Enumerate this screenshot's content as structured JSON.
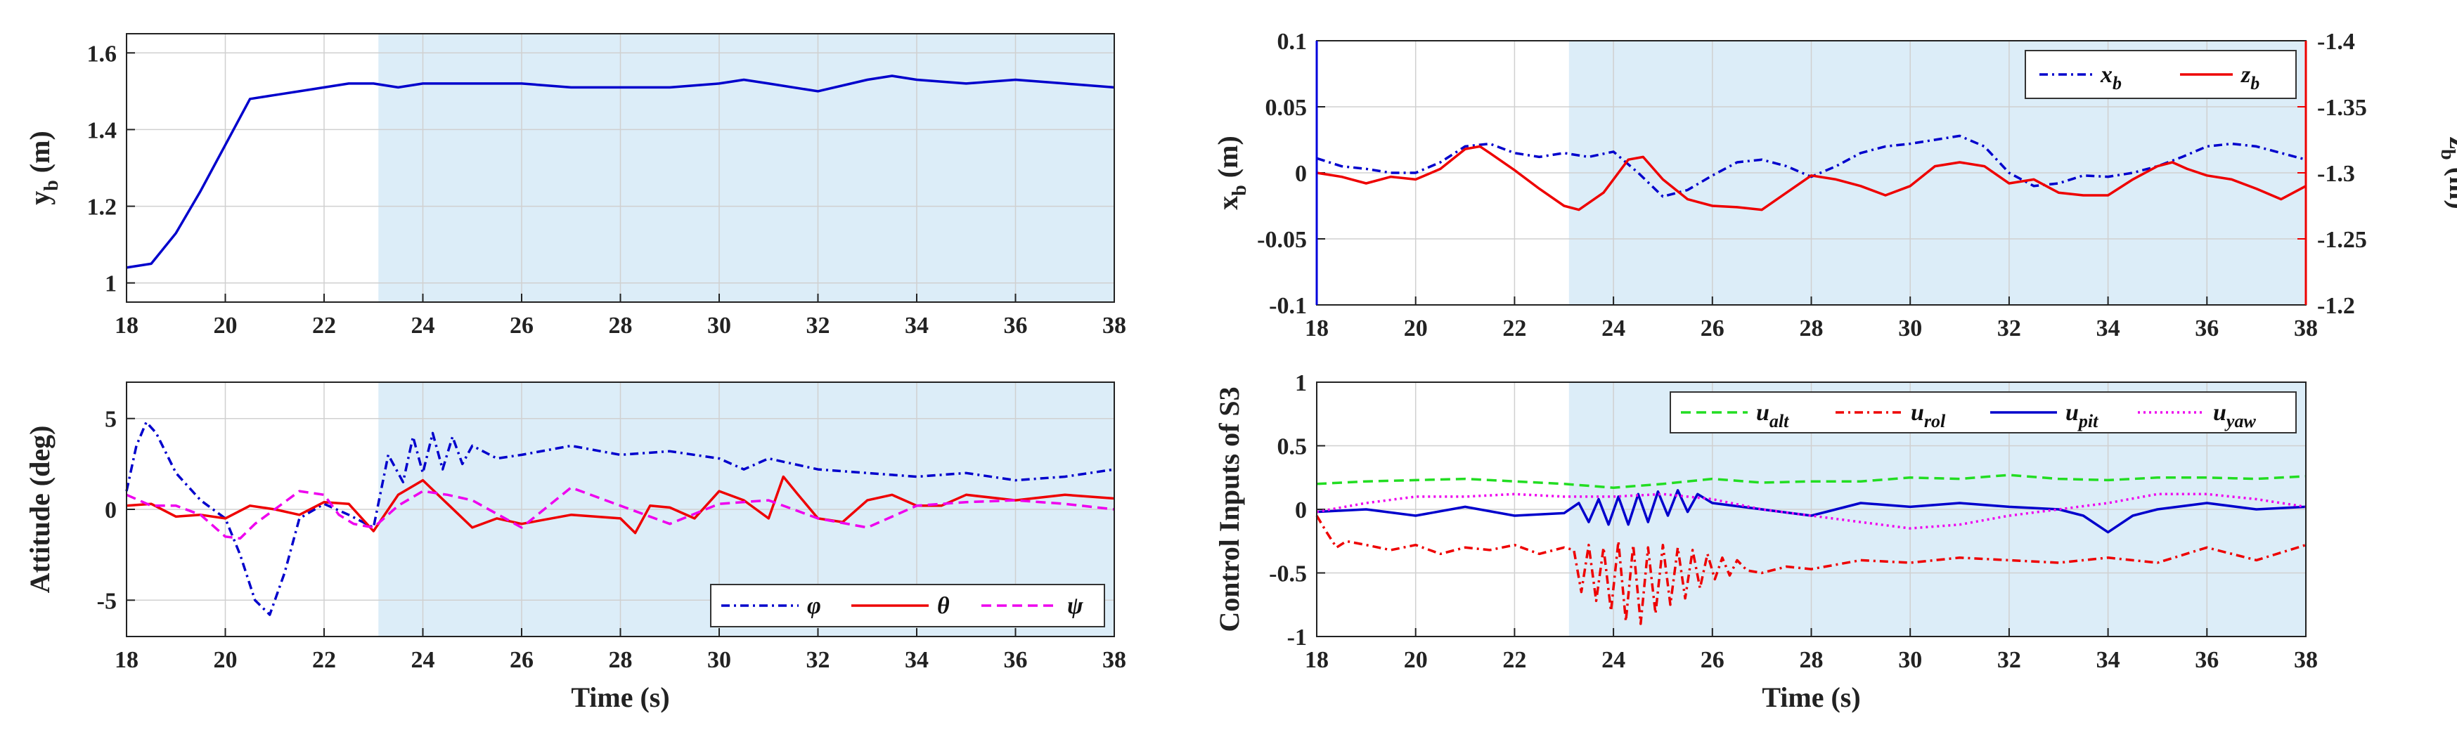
{
  "shade_color": "#dcedf8",
  "chart_data": [
    {
      "id": "p1",
      "type": "line",
      "xlabel": "",
      "ylabel": "y",
      "ylabel_sub": "b",
      "ylabel_unit": " (m)",
      "xlim": [
        18,
        38
      ],
      "ylim": [
        0.95,
        1.65
      ],
      "xticks": [
        "18",
        "20",
        "22",
        "24",
        "26",
        "28",
        "30",
        "32",
        "34",
        "36",
        "38"
      ],
      "yticks": [
        "1",
        "1.2",
        "1.4",
        "1.6"
      ],
      "shade": [
        23.1,
        38
      ],
      "grid": true,
      "legend": null,
      "series": [
        {
          "name": "y_b",
          "color": "#0000cc",
          "dash": "",
          "axis": "left",
          "x": [
            18,
            18.5,
            19,
            19.5,
            20,
            20.5,
            21,
            21.5,
            22,
            22.5,
            23,
            23.5,
            24,
            25,
            26,
            27,
            28,
            29,
            30,
            30.5,
            31,
            32,
            33,
            33.5,
            34,
            35,
            36,
            37,
            38
          ],
          "y": [
            1.04,
            1.05,
            1.13,
            1.24,
            1.36,
            1.48,
            1.49,
            1.5,
            1.51,
            1.52,
            1.52,
            1.51,
            1.52,
            1.52,
            1.52,
            1.51,
            1.51,
            1.51,
            1.52,
            1.53,
            1.52,
            1.5,
            1.53,
            1.54,
            1.53,
            1.52,
            1.53,
            1.52,
            1.51
          ]
        }
      ]
    },
    {
      "id": "p2",
      "type": "line",
      "xlabel": "",
      "ylabel": "x",
      "ylabel_sub": "b",
      "ylabel_unit": " (m)",
      "y2label": "z",
      "y2label_sub": "b",
      "y2label_unit": " (m)",
      "xlim": [
        18,
        38
      ],
      "ylim": [
        -0.1,
        0.1
      ],
      "y2lim": [
        -1.2,
        -1.4
      ],
      "xticks": [
        "18",
        "20",
        "22",
        "24",
        "26",
        "28",
        "30",
        "32",
        "34",
        "36",
        "38"
      ],
      "yticks": [
        "-0.1",
        "-0.05",
        "0",
        "0.05",
        "0.1"
      ],
      "y2ticks": [
        "-1.2",
        "-1.25",
        "-1.3",
        "-1.35",
        "-1.4"
      ],
      "shade": [
        23.1,
        38
      ],
      "grid": true,
      "legend": {
        "position": "top-right",
        "entries": [
          {
            "label": "x",
            "sub": "b"
          },
          {
            "label": "z",
            "sub": "b"
          }
        ]
      },
      "series": [
        {
          "name": "x_b",
          "color": "#0000cc",
          "dash": "12,6,3,6",
          "axis": "left",
          "x": [
            18,
            18.5,
            19,
            19.5,
            20,
            20.5,
            21,
            21.5,
            22,
            22.5,
            23,
            23.5,
            24,
            24.5,
            25,
            25.5,
            26,
            26.5,
            27,
            27.5,
            28,
            28.5,
            29,
            29.5,
            30,
            30.5,
            31,
            31.5,
            32,
            32.5,
            33,
            33.5,
            34,
            34.5,
            35,
            35.5,
            36,
            36.5,
            37,
            37.5,
            38
          ],
          "y": [
            0.011,
            0.005,
            0.003,
            0.0,
            0.0,
            0.008,
            0.02,
            0.022,
            0.015,
            0.012,
            0.015,
            0.012,
            0.016,
            0.0,
            -0.018,
            -0.013,
            -0.002,
            0.008,
            0.01,
            0.005,
            -0.003,
            0.005,
            0.015,
            0.02,
            0.022,
            0.025,
            0.028,
            0.02,
            0.0,
            -0.01,
            -0.008,
            -0.002,
            -0.003,
            0.0,
            0.005,
            0.012,
            0.02,
            0.022,
            0.02,
            0.015,
            0.01
          ]
        },
        {
          "name": "z_b",
          "color": "#ee0000",
          "dash": "",
          "axis": "right",
          "x": [
            18,
            18.5,
            19,
            19.5,
            20,
            20.5,
            21,
            21.3,
            21.5,
            22,
            22.5,
            23,
            23.3,
            23.8,
            24.3,
            24.6,
            25,
            25.5,
            26,
            26.5,
            27,
            27.5,
            28,
            28.5,
            29,
            29.5,
            30,
            30.5,
            31,
            31.5,
            32,
            32.5,
            33,
            33.5,
            34,
            34.5,
            35,
            35.3,
            35.6,
            36,
            36.5,
            37,
            37.5,
            38
          ],
          "y": [
            -1.3,
            -1.297,
            -1.292,
            -1.297,
            -1.295,
            -1.303,
            -1.318,
            -1.32,
            -1.315,
            -1.302,
            -1.288,
            -1.275,
            -1.272,
            -1.285,
            -1.31,
            -1.312,
            -1.295,
            -1.28,
            -1.275,
            -1.274,
            -1.272,
            -1.285,
            -1.298,
            -1.295,
            -1.29,
            -1.283,
            -1.29,
            -1.305,
            -1.308,
            -1.305,
            -1.292,
            -1.295,
            -1.285,
            -1.283,
            -1.283,
            -1.295,
            -1.305,
            -1.308,
            -1.303,
            -1.298,
            -1.295,
            -1.288,
            -1.28,
            -1.29
          ]
        }
      ]
    },
    {
      "id": "p3",
      "type": "line",
      "xlabel": "Time (s)",
      "ylabel": "Attitude (deg)",
      "xlim": [
        18,
        38
      ],
      "ylim": [
        -7,
        7
      ],
      "xticks": [
        "18",
        "20",
        "22",
        "24",
        "26",
        "28",
        "30",
        "32",
        "34",
        "36",
        "38"
      ],
      "yticks": [
        "-5",
        "0",
        "5"
      ],
      "shade": [
        23.1,
        38
      ],
      "grid": true,
      "legend": {
        "position": "bottom-right",
        "entries": [
          {
            "label": "φ"
          },
          {
            "label": "θ"
          },
          {
            "label": "ψ"
          }
        ]
      },
      "series": [
        {
          "name": "phi",
          "color": "#0000cc",
          "dash": "12,6,3,6",
          "axis": "left",
          "x": [
            18,
            18.2,
            18.4,
            18.6,
            19,
            19.5,
            20,
            20.3,
            20.6,
            20.9,
            21.2,
            21.5,
            22,
            22.5,
            23,
            23.3,
            23.6,
            23.8,
            24,
            24.2,
            24.4,
            24.6,
            24.8,
            25,
            25.5,
            26,
            27,
            28,
            29,
            30,
            30.5,
            31,
            32,
            33,
            34,
            35,
            36,
            37,
            38
          ],
          "y": [
            1.0,
            3.5,
            4.8,
            4.2,
            2.0,
            0.5,
            -0.5,
            -2.5,
            -5.0,
            -5.8,
            -3.5,
            -0.5,
            0.3,
            -0.3,
            -1.0,
            3.0,
            1.5,
            4.0,
            2.0,
            4.2,
            2.2,
            4.0,
            2.5,
            3.5,
            2.8,
            3.0,
            3.5,
            3.0,
            3.2,
            2.8,
            2.2,
            2.8,
            2.2,
            2.0,
            1.8,
            2.0,
            1.6,
            1.8,
            2.2
          ]
        },
        {
          "name": "theta",
          "color": "#ee0000",
          "dash": "",
          "axis": "left",
          "x": [
            18,
            18.5,
            19,
            19.5,
            20,
            20.5,
            21,
            21.5,
            22,
            22.5,
            23,
            23.5,
            24,
            24.5,
            25,
            25.5,
            26,
            27,
            28,
            28.3,
            28.6,
            29,
            29.5,
            30,
            30.5,
            31,
            31.3,
            31.6,
            32,
            32.5,
            33,
            33.5,
            34,
            34.5,
            35,
            36,
            37,
            38
          ],
          "y": [
            0.2,
            0.3,
            -0.4,
            -0.3,
            -0.5,
            0.2,
            0.0,
            -0.3,
            0.4,
            0.3,
            -1.2,
            0.8,
            1.6,
            0.3,
            -1.0,
            -0.5,
            -0.8,
            -0.3,
            -0.5,
            -1.3,
            0.2,
            0.1,
            -0.5,
            1.0,
            0.5,
            -0.5,
            1.8,
            0.8,
            -0.5,
            -0.7,
            0.5,
            0.8,
            0.2,
            0.2,
            0.8,
            0.5,
            0.8,
            0.6
          ]
        },
        {
          "name": "psi",
          "color": "#ee00ee",
          "dash": "14,8",
          "axis": "left",
          "x": [
            18,
            18.5,
            19,
            19.5,
            20,
            20.3,
            20.6,
            21,
            21.5,
            22,
            22.3,
            22.6,
            23,
            23.5,
            24,
            24.5,
            25,
            26,
            27,
            28,
            29,
            30,
            31,
            32,
            33,
            34,
            35,
            36,
            37,
            38
          ],
          "y": [
            0.8,
            0.2,
            0.2,
            -0.3,
            -1.5,
            -1.6,
            -0.8,
            0.0,
            1.0,
            0.8,
            -0.3,
            -0.8,
            -1.0,
            0.2,
            1.0,
            0.8,
            0.5,
            -1.0,
            1.2,
            0.2,
            -0.8,
            0.3,
            0.5,
            -0.5,
            -1.0,
            0.2,
            0.4,
            0.5,
            0.3,
            0.0
          ]
        }
      ]
    },
    {
      "id": "p4",
      "type": "line",
      "xlabel": "Time (s)",
      "ylabel": "Control Inputs of S3",
      "xlim": [
        18,
        38
      ],
      "ylim": [
        -1,
        1
      ],
      "xticks": [
        "18",
        "20",
        "22",
        "24",
        "26",
        "28",
        "30",
        "32",
        "34",
        "36",
        "38"
      ],
      "yticks": [
        "-1",
        "-0.5",
        "0",
        "0.5",
        "1"
      ],
      "shade": [
        23.1,
        38
      ],
      "grid": true,
      "legend": {
        "position": "top-right",
        "entries": [
          {
            "label": "u",
            "sub": "alt"
          },
          {
            "label": "u",
            "sub": "rol"
          },
          {
            "label": "u",
            "sub": "pit"
          },
          {
            "label": "u",
            "sub": "yaw"
          }
        ]
      },
      "series": [
        {
          "name": "u_alt",
          "color": "#22dd22",
          "dash": "14,8",
          "axis": "left",
          "x": [
            18,
            19,
            20,
            21,
            22,
            23,
            24,
            25,
            26,
            27,
            28,
            29,
            30,
            31,
            32,
            33,
            34,
            35,
            36,
            37,
            38
          ],
          "y": [
            0.2,
            0.22,
            0.23,
            0.24,
            0.22,
            0.2,
            0.17,
            0.2,
            0.24,
            0.21,
            0.22,
            0.22,
            0.25,
            0.24,
            0.27,
            0.24,
            0.23,
            0.25,
            0.25,
            0.24,
            0.26
          ]
        },
        {
          "name": "u_rol",
          "color": "#ee0000",
          "dash": "12,6,3,6",
          "axis": "left",
          "x": [
            18,
            18.2,
            18.4,
            18.6,
            19,
            19.5,
            20,
            20.5,
            21,
            21.5,
            22,
            22.5,
            23,
            23.2,
            23.35,
            23.5,
            23.65,
            23.8,
            23.95,
            24.1,
            24.25,
            24.4,
            24.55,
            24.7,
            24.85,
            25,
            25.15,
            25.3,
            25.45,
            25.6,
            25.75,
            25.9,
            26.05,
            26.2,
            26.35,
            26.5,
            26.7,
            27,
            27.5,
            28,
            29,
            30,
            31,
            32,
            33,
            34,
            35,
            36,
            37,
            38
          ],
          "y": [
            -0.05,
            -0.18,
            -0.3,
            -0.25,
            -0.28,
            -0.32,
            -0.28,
            -0.35,
            -0.3,
            -0.32,
            -0.28,
            -0.35,
            -0.3,
            -0.32,
            -0.65,
            -0.28,
            -0.72,
            -0.3,
            -0.8,
            -0.25,
            -0.88,
            -0.28,
            -0.9,
            -0.3,
            -0.82,
            -0.28,
            -0.75,
            -0.3,
            -0.7,
            -0.32,
            -0.62,
            -0.35,
            -0.55,
            -0.38,
            -0.52,
            -0.4,
            -0.48,
            -0.5,
            -0.45,
            -0.47,
            -0.4,
            -0.42,
            -0.38,
            -0.4,
            -0.42,
            -0.38,
            -0.42,
            -0.3,
            -0.4,
            -0.28
          ]
        },
        {
          "name": "u_pit",
          "color": "#0000cc",
          "dash": "",
          "axis": "left",
          "x": [
            18,
            19,
            20,
            21,
            22,
            23,
            23.3,
            23.5,
            23.7,
            23.9,
            24.1,
            24.3,
            24.5,
            24.7,
            24.9,
            25.1,
            25.3,
            25.5,
            25.7,
            26,
            27,
            28,
            29,
            30,
            31,
            32,
            33,
            33.5,
            34,
            34.5,
            35,
            36,
            37,
            38
          ],
          "y": [
            -0.02,
            0.0,
            -0.05,
            0.02,
            -0.05,
            -0.03,
            0.05,
            -0.1,
            0.08,
            -0.12,
            0.1,
            -0.12,
            0.12,
            -0.1,
            0.14,
            -0.05,
            0.15,
            -0.02,
            0.12,
            0.05,
            0.0,
            -0.05,
            0.05,
            0.02,
            0.05,
            0.02,
            0.0,
            -0.05,
            -0.18,
            -0.05,
            0.0,
            0.05,
            0.0,
            0.02
          ]
        },
        {
          "name": "u_yaw",
          "color": "#ee00ee",
          "dash": "3,5",
          "axis": "left",
          "x": [
            18,
            19,
            20,
            21,
            22,
            23,
            24,
            25,
            26,
            27,
            28,
            29,
            30,
            31,
            32,
            33,
            34,
            35,
            36,
            37,
            38
          ],
          "y": [
            -0.02,
            0.05,
            0.1,
            0.1,
            0.12,
            0.1,
            0.1,
            0.12,
            0.08,
            0.0,
            -0.05,
            -0.1,
            -0.15,
            -0.12,
            -0.05,
            0.0,
            0.05,
            0.12,
            0.12,
            0.08,
            0.02
          ]
        }
      ]
    }
  ]
}
